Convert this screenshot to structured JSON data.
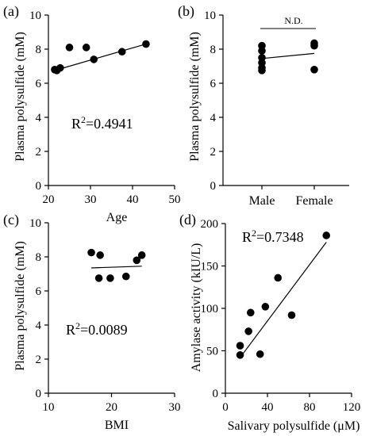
{
  "chart_data": [
    {
      "panel_label": "(a)",
      "type": "scatter",
      "xlabel": "Age",
      "ylabel": "Plasma polysulfide (mM)",
      "xlim": [
        20,
        50
      ],
      "ylim": [
        0,
        10
      ],
      "xticks": [
        "20",
        "30",
        "40",
        "50"
      ],
      "yticks": [
        "0",
        "2",
        "4",
        "6",
        "8",
        "10"
      ],
      "points": [
        {
          "x": 21.5,
          "y": 6.8
        },
        {
          "x": 22.0,
          "y": 6.75
        },
        {
          "x": 22.8,
          "y": 6.9
        },
        {
          "x": 25.0,
          "y": 8.1
        },
        {
          "x": 29.0,
          "y": 8.1
        },
        {
          "x": 30.8,
          "y": 7.4
        },
        {
          "x": 37.5,
          "y": 7.85
        },
        {
          "x": 43.2,
          "y": 8.3
        }
      ],
      "trendline": [
        {
          "x": 21.5,
          "y": 6.75
        },
        {
          "x": 43.2,
          "y": 8.3
        }
      ],
      "annotation": {
        "base": "R",
        "sup": "2",
        "value": "=0.4941"
      }
    },
    {
      "panel_label": "(b)",
      "type": "scatter",
      "xlabel": "",
      "ylabel": "Plasma polysulfide (mM)",
      "categories": [
        "Male",
        "Female"
      ],
      "ylim": [
        0,
        10
      ],
      "yticks": [
        "0",
        "2",
        "4",
        "6",
        "8",
        "10"
      ],
      "points": [
        {
          "x": "Male",
          "y": 8.2
        },
        {
          "x": "Male",
          "y": 7.9
        },
        {
          "x": "Male",
          "y": 7.5
        },
        {
          "x": "Male",
          "y": 7.2
        },
        {
          "x": "Male",
          "y": 6.9
        },
        {
          "x": "Male",
          "y": 6.75
        },
        {
          "x": "Female",
          "y": 8.35
        },
        {
          "x": "Female",
          "y": 8.2
        },
        {
          "x": "Female",
          "y": 6.8
        }
      ],
      "trendline": [
        {
          "x": "Male",
          "y": 7.45
        },
        {
          "x": "Female",
          "y": 7.75
        }
      ],
      "significance": "N.D."
    },
    {
      "panel_label": "(c)",
      "type": "scatter",
      "xlabel": "BMI",
      "ylabel": "Plasma polysulfide (mM)",
      "xlim": [
        10,
        30
      ],
      "ylim": [
        0,
        10
      ],
      "xticks": [
        "10",
        "20",
        "30"
      ],
      "yticks": [
        "0",
        "2",
        "4",
        "6",
        "8",
        "10"
      ],
      "points": [
        {
          "x": 16.8,
          "y": 8.25
        },
        {
          "x": 18.2,
          "y": 8.1
        },
        {
          "x": 18.0,
          "y": 6.75
        },
        {
          "x": 19.8,
          "y": 6.75
        },
        {
          "x": 22.3,
          "y": 6.85
        },
        {
          "x": 24.0,
          "y": 7.8
        },
        {
          "x": 24.8,
          "y": 8.1
        }
      ],
      "trendline": [
        {
          "x": 16.8,
          "y": 7.35
        },
        {
          "x": 24.8,
          "y": 7.45
        }
      ],
      "annotation": {
        "base": "R",
        "sup": "2",
        "value": "=0.0089"
      }
    },
    {
      "panel_label": "(d)",
      "type": "scatter",
      "xlabel_prefix": "Salivary polysulfide (",
      "xlabel_unit": "μM",
      "xlabel_suffix": ")",
      "ylabel": "Amylase activity (kIU/L)",
      "xlim": [
        0,
        120
      ],
      "ylim": [
        0,
        200
      ],
      "xticks": [
        "0",
        "40",
        "80",
        "120"
      ],
      "yticks": [
        "0",
        "50",
        "100",
        "150",
        "200"
      ],
      "points": [
        {
          "x": 14,
          "y": 45
        },
        {
          "x": 14,
          "y": 56
        },
        {
          "x": 22,
          "y": 73
        },
        {
          "x": 24,
          "y": 95
        },
        {
          "x": 33,
          "y": 46
        },
        {
          "x": 38,
          "y": 102
        },
        {
          "x": 50,
          "y": 136
        },
        {
          "x": 63,
          "y": 92
        },
        {
          "x": 96,
          "y": 186
        }
      ],
      "trendline": [
        {
          "x": 14,
          "y": 42
        },
        {
          "x": 96,
          "y": 178
        }
      ],
      "annotation": {
        "base": "R",
        "sup": "2",
        "value": "=0.7348"
      }
    }
  ]
}
